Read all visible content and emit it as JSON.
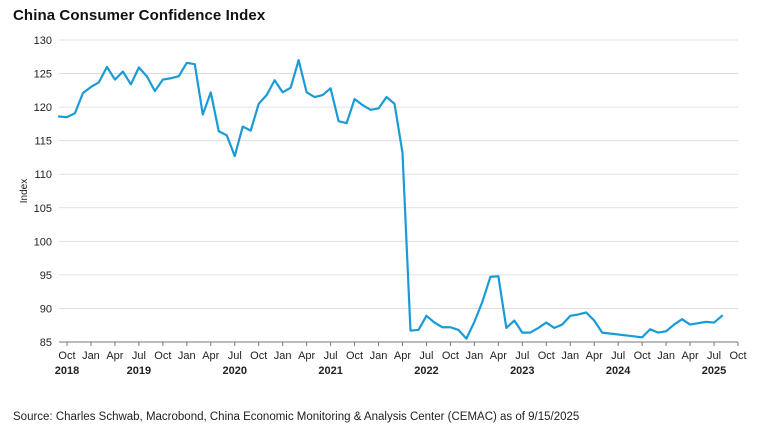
{
  "chart_data": {
    "type": "line",
    "title": "China Consumer Confidence Index",
    "ylabel": "Index",
    "ylim": [
      85,
      130
    ],
    "yticks": [
      85,
      90,
      95,
      100,
      105,
      110,
      115,
      120,
      125,
      130
    ],
    "xlim": [
      "2018-09",
      "2025-10"
    ],
    "month_ticks": [
      {
        "date": "2018-10",
        "label": "Oct"
      },
      {
        "date": "2019-01",
        "label": "Jan"
      },
      {
        "date": "2019-04",
        "label": "Apr"
      },
      {
        "date": "2019-07",
        "label": "Jul"
      },
      {
        "date": "2019-10",
        "label": "Oct"
      },
      {
        "date": "2020-01",
        "label": "Jan"
      },
      {
        "date": "2020-04",
        "label": "Apr"
      },
      {
        "date": "2020-07",
        "label": "Jul"
      },
      {
        "date": "2020-10",
        "label": "Oct"
      },
      {
        "date": "2021-01",
        "label": "Jan"
      },
      {
        "date": "2021-04",
        "label": "Apr"
      },
      {
        "date": "2021-07",
        "label": "Jul"
      },
      {
        "date": "2021-10",
        "label": "Oct"
      },
      {
        "date": "2022-01",
        "label": "Jan"
      },
      {
        "date": "2022-04",
        "label": "Apr"
      },
      {
        "date": "2022-07",
        "label": "Jul"
      },
      {
        "date": "2022-10",
        "label": "Oct"
      },
      {
        "date": "2023-01",
        "label": "Jan"
      },
      {
        "date": "2023-04",
        "label": "Apr"
      },
      {
        "date": "2023-07",
        "label": "Jul"
      },
      {
        "date": "2023-10",
        "label": "Oct"
      },
      {
        "date": "2024-01",
        "label": "Jan"
      },
      {
        "date": "2024-04",
        "label": "Apr"
      },
      {
        "date": "2024-07",
        "label": "Jul"
      },
      {
        "date": "2024-10",
        "label": "Oct"
      },
      {
        "date": "2025-01",
        "label": "Jan"
      },
      {
        "date": "2025-04",
        "label": "Apr"
      },
      {
        "date": "2025-07",
        "label": "Jul"
      },
      {
        "date": "2025-10",
        "label": "Oct"
      }
    ],
    "year_labels": [
      {
        "date": "2018-10",
        "label": "2018"
      },
      {
        "date": "2019-07",
        "label": "2019"
      },
      {
        "date": "2020-07",
        "label": "2020"
      },
      {
        "date": "2021-07",
        "label": "2021"
      },
      {
        "date": "2022-07",
        "label": "2022"
      },
      {
        "date": "2023-07",
        "label": "2023"
      },
      {
        "date": "2024-07",
        "label": "2024"
      },
      {
        "date": "2025-07",
        "label": "2025"
      }
    ],
    "grid": true,
    "legend": "none",
    "series": [
      {
        "color": "#1a9bd7",
        "points": [
          {
            "x": "2018-09",
            "y": 118.6
          },
          {
            "x": "2018-10",
            "y": 118.5
          },
          {
            "x": "2018-11",
            "y": 119.1
          },
          {
            "x": "2018-12",
            "y": 122.1
          },
          {
            "x": "2019-01",
            "y": 123.0
          },
          {
            "x": "2019-02",
            "y": 123.7
          },
          {
            "x": "2019-03",
            "y": 126.0
          },
          {
            "x": "2019-04",
            "y": 124.1
          },
          {
            "x": "2019-05",
            "y": 125.3
          },
          {
            "x": "2019-06",
            "y": 123.4
          },
          {
            "x": "2019-07",
            "y": 125.9
          },
          {
            "x": "2019-08",
            "y": 124.6
          },
          {
            "x": "2019-09",
            "y": 122.4
          },
          {
            "x": "2019-10",
            "y": 124.1
          },
          {
            "x": "2019-11",
            "y": 124.3
          },
          {
            "x": "2019-12",
            "y": 124.6
          },
          {
            "x": "2020-01",
            "y": 126.6
          },
          {
            "x": "2020-02",
            "y": 126.4
          },
          {
            "x": "2020-03",
            "y": 118.9
          },
          {
            "x": "2020-04",
            "y": 122.2
          },
          {
            "x": "2020-05",
            "y": 116.4
          },
          {
            "x": "2020-06",
            "y": 115.8
          },
          {
            "x": "2020-07",
            "y": 112.7
          },
          {
            "x": "2020-08",
            "y": 117.1
          },
          {
            "x": "2020-09",
            "y": 116.5
          },
          {
            "x": "2020-10",
            "y": 120.5
          },
          {
            "x": "2020-11",
            "y": 121.8
          },
          {
            "x": "2020-12",
            "y": 124.0
          },
          {
            "x": "2021-01",
            "y": 122.2
          },
          {
            "x": "2021-02",
            "y": 122.9
          },
          {
            "x": "2021-03",
            "y": 127.0
          },
          {
            "x": "2021-04",
            "y": 122.2
          },
          {
            "x": "2021-05",
            "y": 121.5
          },
          {
            "x": "2021-06",
            "y": 121.8
          },
          {
            "x": "2021-07",
            "y": 122.8
          },
          {
            "x": "2021-08",
            "y": 117.9
          },
          {
            "x": "2021-09",
            "y": 117.6
          },
          {
            "x": "2021-10",
            "y": 121.2
          },
          {
            "x": "2021-11",
            "y": 120.3
          },
          {
            "x": "2021-12",
            "y": 119.6
          },
          {
            "x": "2022-01",
            "y": 119.8
          },
          {
            "x": "2022-02",
            "y": 121.5
          },
          {
            "x": "2022-03",
            "y": 120.5
          },
          {
            "x": "2022-04",
            "y": 113.2
          },
          {
            "x": "2022-05",
            "y": 86.7
          },
          {
            "x": "2022-06",
            "y": 86.8
          },
          {
            "x": "2022-07",
            "y": 88.9
          },
          {
            "x": "2022-08",
            "y": 87.9
          },
          {
            "x": "2022-09",
            "y": 87.2
          },
          {
            "x": "2022-10",
            "y": 87.2
          },
          {
            "x": "2022-11",
            "y": 86.8
          },
          {
            "x": "2022-12",
            "y": 85.5
          },
          {
            "x": "2023-01",
            "y": 88.0
          },
          {
            "x": "2023-02",
            "y": 91.0
          },
          {
            "x": "2023-03",
            "y": 94.7
          },
          {
            "x": "2023-04",
            "y": 94.8
          },
          {
            "x": "2023-05",
            "y": 87.1
          },
          {
            "x": "2023-06",
            "y": 88.2
          },
          {
            "x": "2023-07",
            "y": 86.4
          },
          {
            "x": "2023-08",
            "y": 86.4
          },
          {
            "x": "2023-09",
            "y": 87.1
          },
          {
            "x": "2023-10",
            "y": 87.9
          },
          {
            "x": "2023-11",
            "y": 87.1
          },
          {
            "x": "2023-12",
            "y": 87.6
          },
          {
            "x": "2024-01",
            "y": 88.9
          },
          {
            "x": "2024-02",
            "y": 89.1
          },
          {
            "x": "2024-03",
            "y": 89.4
          },
          {
            "x": "2024-04",
            "y": 88.2
          },
          {
            "x": "2024-05",
            "y": 86.4
          },
          {
            "x": "2024-10",
            "y": 85.7
          },
          {
            "x": "2024-11",
            "y": 86.9
          },
          {
            "x": "2024-12",
            "y": 86.4
          },
          {
            "x": "2025-01",
            "y": 86.6
          },
          {
            "x": "2025-02",
            "y": 87.6
          },
          {
            "x": "2025-03",
            "y": 88.4
          },
          {
            "x": "2025-04",
            "y": 87.6
          },
          {
            "x": "2025-05",
            "y": 87.8
          },
          {
            "x": "2025-06",
            "y": 88.0
          },
          {
            "x": "2025-07",
            "y": 87.9
          },
          {
            "x": "2025-08",
            "y": 88.9
          }
        ]
      }
    ],
    "source": "Source: Charles Schwab, Macrobond, China Economic Monitoring & Analysis Center (CEMAC) as of 9/15/2025"
  },
  "colors": {
    "line": "#1a9bd7",
    "grid": "#d9d9d9",
    "axis": "#777777",
    "text": "#222222"
  }
}
